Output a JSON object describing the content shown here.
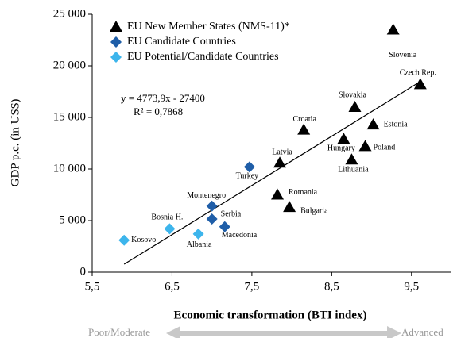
{
  "chart_data": {
    "type": "scatter",
    "x_label": "Economic transformation (BTI index)",
    "y_label": "GDP p.c. (in US$)",
    "xlim": [
      5.5,
      10
    ],
    "ylim": [
      0,
      25000
    ],
    "xticks": [
      {
        "value": 5.5,
        "label": "5,5"
      },
      {
        "value": 6.5,
        "label": "6,5"
      },
      {
        "value": 7.5,
        "label": "7,5"
      },
      {
        "value": 8.5,
        "label": "8,5"
      },
      {
        "value": 9.5,
        "label": "9,5"
      }
    ],
    "yticks": [
      0,
      {
        "value": 5000,
        "label": "5 000"
      },
      {
        "value": 10000,
        "label": "10 000"
      },
      {
        "value": 15000,
        "label": "15 000"
      },
      {
        "value": 20000,
        "label": "20 000"
      },
      {
        "value": 25000,
        "label": "25 000"
      }
    ],
    "series": [
      {
        "name": "EU New Member States (NMS-11)*",
        "color": "#000000",
        "marker": "triangle",
        "labels": [
          "Slovenia",
          "Czech  Rep.",
          "Slovakia",
          "Estonia",
          "Hungary",
          "Poland",
          "Lithuania",
          "Croatia",
          "Latvia",
          "Romania",
          "Bulgaria"
        ],
        "x": [
          9.27,
          9.61,
          8.79,
          9.02,
          8.65,
          8.92,
          8.75,
          8.15,
          7.85,
          7.82,
          7.97
        ],
        "values": [
          23500,
          18200,
          16000,
          14300,
          12900,
          12200,
          10900,
          13800,
          10600,
          7500,
          6300
        ]
      },
      {
        "name": "EU Candidate Countries",
        "color": "#1f5ea8",
        "marker": "diamond",
        "labels": [
          "Turkey",
          "Montenegro",
          "Serbia",
          "Macedonia"
        ],
        "x": [
          7.47,
          7.0,
          7.0,
          7.16
        ],
        "values": [
          10200,
          6400,
          5150,
          4400
        ]
      },
      {
        "name": "EU Potential/Candidate Countries",
        "color": "#3db5ec",
        "marker": "diamond",
        "labels": [
          "Kosovo",
          "Bosnia H.",
          "Albania"
        ],
        "x": [
          5.9,
          6.47,
          6.83
        ],
        "values": [
          3100,
          4200,
          3700
        ]
      }
    ],
    "trendline": {
      "slope": 4773.9,
      "intercept": -27400,
      "label": "y = 4773,9x - 27400",
      "r2_label": "R² = 0,7868"
    },
    "scale_low": "Poor/Moderate",
    "scale_high": "Advanced"
  }
}
